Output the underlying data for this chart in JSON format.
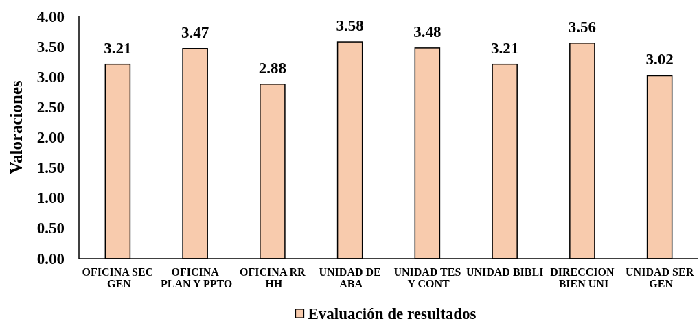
{
  "chart_data": {
    "type": "bar",
    "ylabel": "Valoraciones",
    "categories": [
      "OFICINA SEC GEN",
      "OFICINA PLAN Y PPTO",
      "OFICINA RR HH",
      "UNIDAD DE ABA",
      "UNIDAD TES Y CONT",
      "UNIDAD BIBLI",
      "DIRECCION BIEN UNI",
      "UNIDAD SER GEN"
    ],
    "series": [
      {
        "name": "Evaluación de resultados",
        "color": "#f8cbad",
        "values": [
          3.21,
          3.47,
          2.88,
          3.58,
          3.48,
          3.21,
          3.56,
          3.02
        ]
      }
    ],
    "ylim": [
      0,
      4
    ],
    "yticks": [
      {
        "value": 0,
        "label": "0.00"
      },
      {
        "value": 0.5,
        "label": "0.50"
      },
      {
        "value": 1,
        "label": "1.00"
      },
      {
        "value": 1.5,
        "label": "1.50"
      },
      {
        "value": 2,
        "label": "2.00"
      },
      {
        "value": 2.5,
        "label": "2.50"
      },
      {
        "value": 3,
        "label": "3.00"
      },
      {
        "value": 3.5,
        "label": "3.50"
      },
      {
        "value": 4,
        "label": "4.00"
      }
    ],
    "data_labels": true,
    "legend": "bottom"
  }
}
